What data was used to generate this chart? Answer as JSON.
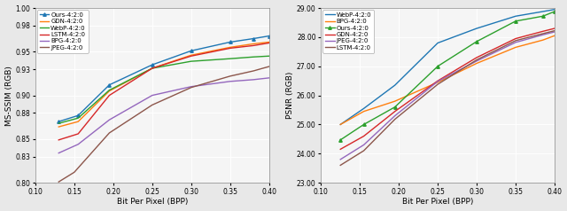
{
  "left": {
    "xlabel": "Bit Per Pixel (BPP)",
    "ylabel": "MS-SSIM (RGB)",
    "xlim": [
      0.1,
      0.4
    ],
    "ylim": [
      0.8,
      1.0
    ],
    "yticks": [
      0.8,
      0.83,
      0.85,
      0.88,
      0.9,
      0.93,
      0.95,
      0.98,
      1.0
    ],
    "xticks": [
      0.1,
      0.15,
      0.2,
      0.25,
      0.3,
      0.35,
      0.4
    ],
    "series": [
      {
        "label": "Ours-4:2:0",
        "color": "#1f77b4",
        "marker": "^",
        "x": [
          0.13,
          0.155,
          0.195,
          0.25,
          0.3,
          0.35,
          0.38,
          0.4
        ],
        "y": [
          0.87,
          0.877,
          0.912,
          0.935,
          0.951,
          0.961,
          0.965,
          0.968
        ]
      },
      {
        "label": "GDN-4:2:0",
        "color": "#ff7f0e",
        "marker": null,
        "x": [
          0.13,
          0.155,
          0.195,
          0.25,
          0.3,
          0.35,
          0.38,
          0.4
        ],
        "y": [
          0.864,
          0.87,
          0.905,
          0.931,
          0.946,
          0.955,
          0.959,
          0.961
        ]
      },
      {
        "label": "WebP-4:2:0",
        "color": "#2ca02c",
        "marker": null,
        "x": [
          0.13,
          0.155,
          0.195,
          0.25,
          0.3,
          0.35,
          0.38,
          0.4
        ],
        "y": [
          0.868,
          0.874,
          0.906,
          0.931,
          0.939,
          0.942,
          0.944,
          0.945
        ]
      },
      {
        "label": "LSTM-4:2:0",
        "color": "#d62728",
        "marker": null,
        "x": [
          0.13,
          0.155,
          0.195,
          0.25,
          0.3,
          0.35,
          0.38,
          0.4
        ],
        "y": [
          0.849,
          0.856,
          0.9,
          0.931,
          0.945,
          0.954,
          0.957,
          0.96
        ]
      },
      {
        "label": "BPG-4:2:0",
        "color": "#9467bd",
        "marker": null,
        "x": [
          0.13,
          0.155,
          0.195,
          0.25,
          0.3,
          0.35,
          0.38,
          0.4
        ],
        "y": [
          0.834,
          0.844,
          0.872,
          0.9,
          0.91,
          0.916,
          0.918,
          0.92
        ]
      },
      {
        "label": "JPEG-4:2:0",
        "color": "#8c564b",
        "marker": null,
        "x": [
          0.13,
          0.15,
          0.195,
          0.25,
          0.3,
          0.35,
          0.38,
          0.4
        ],
        "y": [
          0.801,
          0.812,
          0.857,
          0.889,
          0.909,
          0.922,
          0.928,
          0.933
        ]
      }
    ]
  },
  "right": {
    "xlabel": "Bit Per Pixel (BPP)",
    "ylabel": "PSNR (RGB)",
    "xlim": [
      0.1,
      0.4
    ],
    "ylim": [
      23.0,
      29.0
    ],
    "yticks": [
      23.0,
      24.0,
      25.0,
      26.0,
      27.0,
      28.0,
      29.0
    ],
    "xticks": [
      0.1,
      0.15,
      0.2,
      0.25,
      0.3,
      0.35,
      0.4
    ],
    "series": [
      {
        "label": "WebP-4:2:0",
        "color": "#1f77b4",
        "marker": null,
        "x": [
          0.125,
          0.155,
          0.195,
          0.25,
          0.3,
          0.35,
          0.385,
          0.4
        ],
        "y": [
          25.0,
          25.55,
          26.35,
          27.8,
          28.3,
          28.72,
          28.88,
          28.95
        ]
      },
      {
        "label": "BPG-4:2:0",
        "color": "#ff7f0e",
        "marker": null,
        "x": [
          0.125,
          0.155,
          0.195,
          0.25,
          0.3,
          0.35,
          0.385,
          0.4
        ],
        "y": [
          25.0,
          25.45,
          25.8,
          26.45,
          27.1,
          27.65,
          27.9,
          28.05
        ]
      },
      {
        "label": "Ours-4:2:0",
        "color": "#2ca02c",
        "marker": "^",
        "x": [
          0.125,
          0.155,
          0.195,
          0.25,
          0.3,
          0.35,
          0.385,
          0.4
        ],
        "y": [
          24.47,
          25.0,
          25.6,
          27.0,
          27.85,
          28.55,
          28.72,
          28.88
        ]
      },
      {
        "label": "GDN-4:2:0",
        "color": "#d62728",
        "marker": null,
        "x": [
          0.125,
          0.155,
          0.195,
          0.25,
          0.3,
          0.35,
          0.385,
          0.4
        ],
        "y": [
          24.15,
          24.6,
          25.45,
          26.5,
          27.3,
          27.95,
          28.2,
          28.3
        ]
      },
      {
        "label": "JPEG-4:2:0",
        "color": "#9467bd",
        "marker": null,
        "x": [
          0.125,
          0.155,
          0.195,
          0.25,
          0.3,
          0.35,
          0.385,
          0.4
        ],
        "y": [
          23.8,
          24.3,
          25.3,
          26.48,
          27.18,
          27.82,
          28.08,
          28.18
        ]
      },
      {
        "label": "LSTM-4:2:0",
        "color": "#8c564b",
        "marker": null,
        "x": [
          0.125,
          0.155,
          0.195,
          0.25,
          0.3,
          0.35,
          0.385,
          0.4
        ],
        "y": [
          23.6,
          24.1,
          25.18,
          26.38,
          27.22,
          27.88,
          28.12,
          28.22
        ]
      }
    ]
  }
}
